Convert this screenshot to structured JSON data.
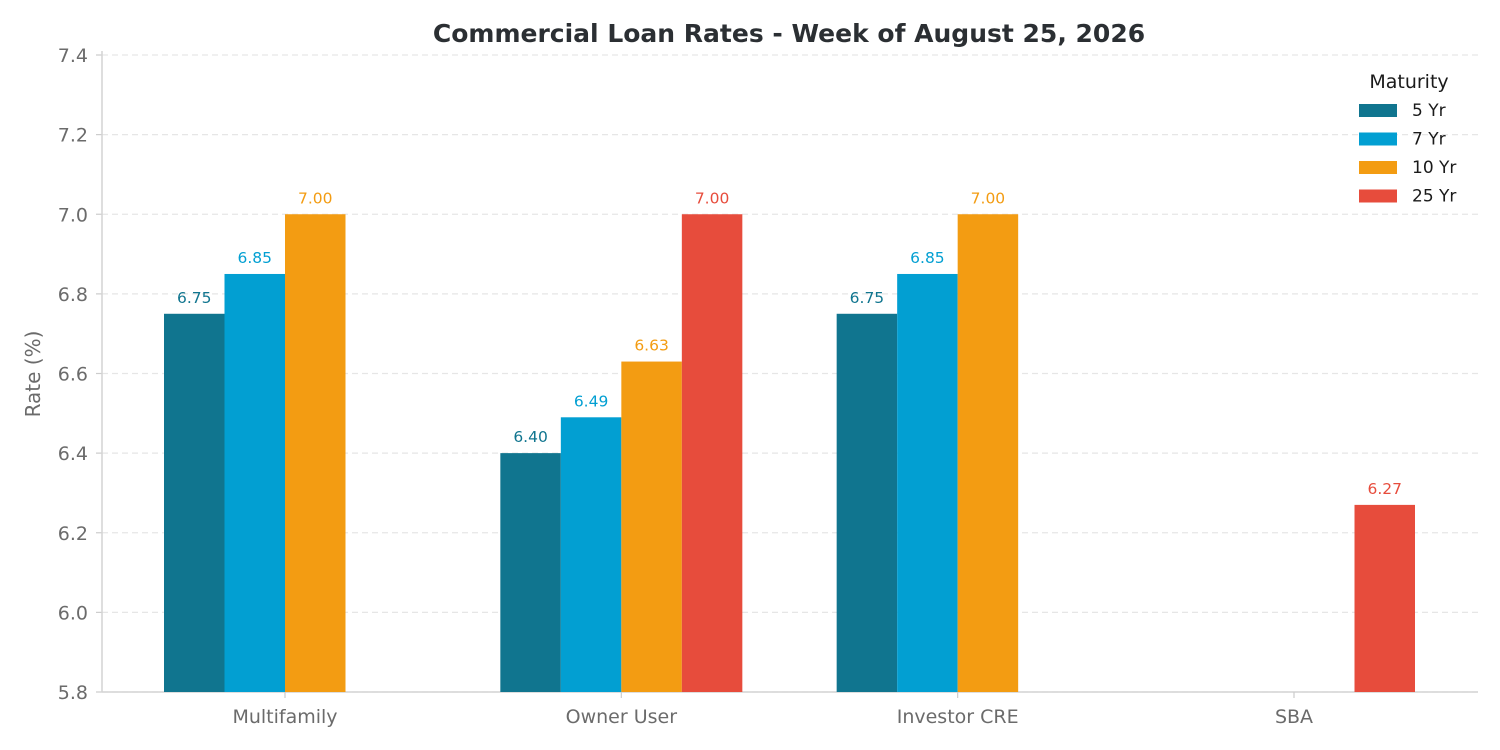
{
  "chart_data": {
    "type": "bar",
    "title": "Commercial Loan Rates - Week of August 25, 2026",
    "xlabel": "",
    "ylabel": "Rate (%)",
    "ylim": [
      5.8,
      7.4
    ],
    "yticks": [
      "5.8",
      "6.0",
      "6.2",
      "6.4",
      "6.6",
      "6.8",
      "7.0",
      "7.2",
      "7.4"
    ],
    "grid": true,
    "categories": [
      "Multifamily",
      "Owner User",
      "Investor CRE",
      "SBA"
    ],
    "legend": {
      "title": "Maturity",
      "placement": "top-right"
    },
    "series": [
      {
        "name": "5 Yr",
        "color": "#10758f",
        "values": [
          6.75,
          6.4,
          6.75,
          null
        ],
        "labels": [
          "6.75",
          "6.40",
          "6.75",
          ""
        ]
      },
      {
        "name": "7 Yr",
        "color": "#029fd2",
        "values": [
          6.85,
          6.49,
          6.85,
          null
        ],
        "labels": [
          "6.85",
          "6.49",
          "6.85",
          ""
        ]
      },
      {
        "name": "10 Yr",
        "color": "#f39c12",
        "values": [
          7.0,
          6.63,
          7.0,
          null
        ],
        "labels": [
          "7.00",
          "6.63",
          "7.00",
          ""
        ]
      },
      {
        "name": "25 Yr",
        "color": "#e74c3c",
        "values": [
          null,
          7.0,
          null,
          6.27
        ],
        "labels": [
          "",
          "7.00",
          "",
          "6.27"
        ]
      }
    ]
  }
}
